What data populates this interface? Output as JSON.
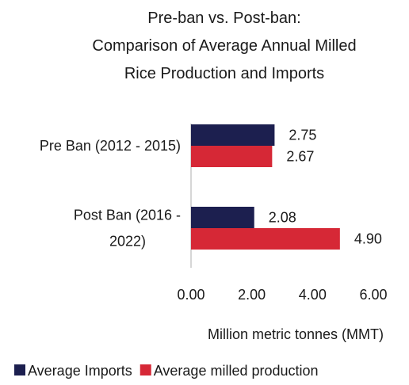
{
  "chart_data": {
    "type": "bar",
    "orientation": "horizontal",
    "title_lines": [
      "Pre-ban vs. Post-ban:",
      "Comparison of Average Annual Milled",
      "Rice Production and Imports"
    ],
    "categories": [
      {
        "lines": [
          "Pre Ban (2012 - 2015)"
        ]
      },
      {
        "lines": [
          "Post Ban (2016 -",
          "2022)"
        ]
      }
    ],
    "series": [
      {
        "name": "Average Imports",
        "color": "#1c1f4f",
        "values": [
          2.75,
          2.08
        ],
        "labels": [
          "2.75",
          "2.08"
        ]
      },
      {
        "name": "Average milled production",
        "color": "#d62836",
        "values": [
          2.67,
          4.9
        ],
        "labels": [
          "2.67",
          "4.90"
        ]
      }
    ],
    "xaxis": {
      "label": "Million metric tonnes (MMT)",
      "xlim": [
        0,
        6
      ],
      "ticks": [
        0,
        2,
        4,
        6
      ],
      "tick_labels": [
        "0.00",
        "2.00",
        "4.00",
        "6.00"
      ]
    },
    "grid": false,
    "legend_position": "bottom"
  }
}
